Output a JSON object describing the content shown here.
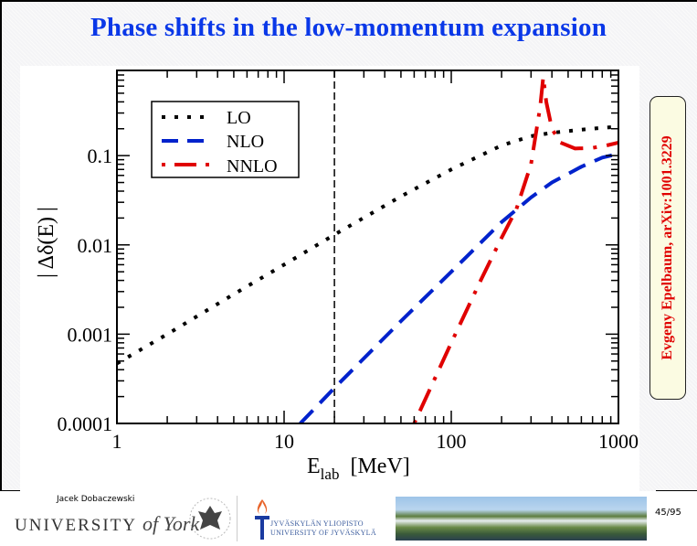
{
  "slide": {
    "title": "Phase shifts in the low-momentum expansion",
    "attribution": "Evgeny Epelbaum, arXiv:1001.3229",
    "footer": {
      "presenter": "Jacek Dobaczewski",
      "york_logo_text": "UNIVERSITY",
      "york_logo_italic": "of York",
      "jyu_line1": "JYVÄSKYLÄN YLIOPISTO",
      "jyu_line2": "UNIVERSITY OF JYVÄSKYLÄ",
      "page": "45/95"
    },
    "colors": {
      "title": "#0a38e8",
      "attribution": "#e00000",
      "attribution_bg": "#fbfbe2"
    }
  },
  "chart_data": {
    "type": "line",
    "title": "",
    "xlabel": "E",
    "xlabel_sub": "lab",
    "xlabel_unit": "[MeV]",
    "ylabel": "| Δδ(E) |",
    "xscale": "log",
    "yscale": "log",
    "xlim": [
      1,
      1000
    ],
    "ylim": [
      0.0001,
      0.9
    ],
    "xticks": [
      1,
      10,
      100,
      1000
    ],
    "xtick_labels": [
      "1",
      "10",
      "100",
      "1000"
    ],
    "yticks": [
      0.0001,
      0.001,
      0.01,
      0.1
    ],
    "ytick_labels": [
      "0.0001",
      "0.001",
      "0.01",
      "0.1"
    ],
    "grid": false,
    "legend_position": "top-left",
    "vertical_marker": {
      "x": 20,
      "style": "dashed",
      "color": "#000000"
    },
    "series": [
      {
        "name": "LO",
        "style": "dotted",
        "color": "#000000",
        "x": [
          1,
          2,
          5,
          10,
          20,
          50,
          100,
          200,
          300,
          400,
          600,
          800,
          1000
        ],
        "y": [
          0.00047,
          0.001,
          0.0028,
          0.006,
          0.013,
          0.035,
          0.07,
          0.13,
          0.165,
          0.18,
          0.195,
          0.205,
          0.21
        ]
      },
      {
        "name": "NLO",
        "style": "dashed",
        "color": "#0022cc",
        "x": [
          12.5,
          20,
          50,
          100,
          200,
          300,
          400,
          600,
          800,
          1000
        ],
        "y": [
          0.0001,
          0.00025,
          0.0014,
          0.005,
          0.018,
          0.034,
          0.05,
          0.075,
          0.095,
          0.105
        ]
      },
      {
        "name": "NNLO",
        "style": "dash-dot",
        "color": "#e00000",
        "x": [
          60,
          100,
          150,
          200,
          245,
          300,
          340,
          355,
          370,
          400,
          450,
          550,
          700,
          850,
          1000
        ],
        "y": [
          0.0001,
          0.0008,
          0.004,
          0.012,
          0.025,
          0.08,
          0.35,
          0.76,
          0.4,
          0.2,
          0.14,
          0.12,
          0.122,
          0.13,
          0.14
        ]
      }
    ]
  }
}
